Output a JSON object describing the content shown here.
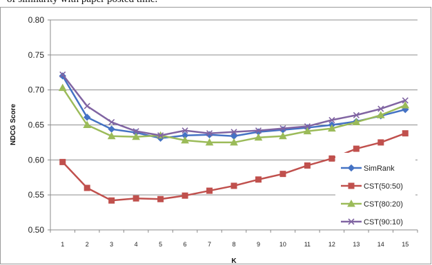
{
  "caption": "of similarity with paper posted time.",
  "chart_data": {
    "type": "line",
    "xlabel": "K",
    "ylabel": "NDCG Score",
    "x": [
      1,
      2,
      3,
      4,
      5,
      6,
      7,
      8,
      9,
      10,
      11,
      12,
      13,
      14,
      15
    ],
    "ylim": [
      0.5,
      0.8
    ],
    "yticks": [
      "0.50",
      "0.55",
      "0.60",
      "0.65",
      "0.70",
      "0.75",
      "0.80"
    ],
    "grid": "horizontal",
    "legend_position": "right",
    "series": [
      {
        "name": "SimRank",
        "color": "#4472c4",
        "marker": "diamond",
        "values": [
          0.72,
          0.661,
          0.644,
          0.639,
          0.631,
          0.635,
          0.636,
          0.634,
          0.64,
          0.643,
          0.646,
          0.65,
          0.655,
          0.663,
          0.672
        ]
      },
      {
        "name": "CST(50:50)",
        "color": "#c0504d",
        "marker": "square",
        "values": [
          0.597,
          0.56,
          0.542,
          0.545,
          0.544,
          0.549,
          0.556,
          0.563,
          0.572,
          0.58,
          0.592,
          0.602,
          0.616,
          0.625,
          0.638
        ]
      },
      {
        "name": "CST(80:20)",
        "color": "#9bbb59",
        "marker": "triangle",
        "values": [
          0.703,
          0.65,
          0.634,
          0.633,
          0.635,
          0.628,
          0.625,
          0.625,
          0.632,
          0.634,
          0.641,
          0.645,
          0.654,
          0.664,
          0.678
        ]
      },
      {
        "name": "CST(90:10)",
        "color": "#8064a2",
        "marker": "x",
        "values": [
          0.722,
          0.677,
          0.654,
          0.641,
          0.635,
          0.642,
          0.638,
          0.64,
          0.642,
          0.645,
          0.648,
          0.657,
          0.664,
          0.673,
          0.685
        ]
      }
    ]
  }
}
